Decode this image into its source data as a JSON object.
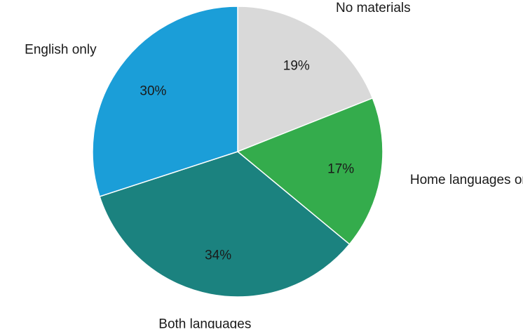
{
  "chart_data": {
    "type": "pie",
    "title": "",
    "slices": [
      {
        "label": "No materials",
        "value": 19,
        "value_label": "19%",
        "color": "#d9d9d9"
      },
      {
        "label": "Home languages only",
        "value": 17,
        "value_label": "17%",
        "color": "#34ac4c"
      },
      {
        "label": "Both languages",
        "value": 34,
        "value_label": "34%",
        "color": "#1b827f"
      },
      {
        "label": "English only",
        "value": 30,
        "value_label": "30%",
        "color": "#1b9ed8"
      }
    ],
    "start": "12 o'clock",
    "direction": "clockwise",
    "legend": "none (direct outside labels)"
  }
}
